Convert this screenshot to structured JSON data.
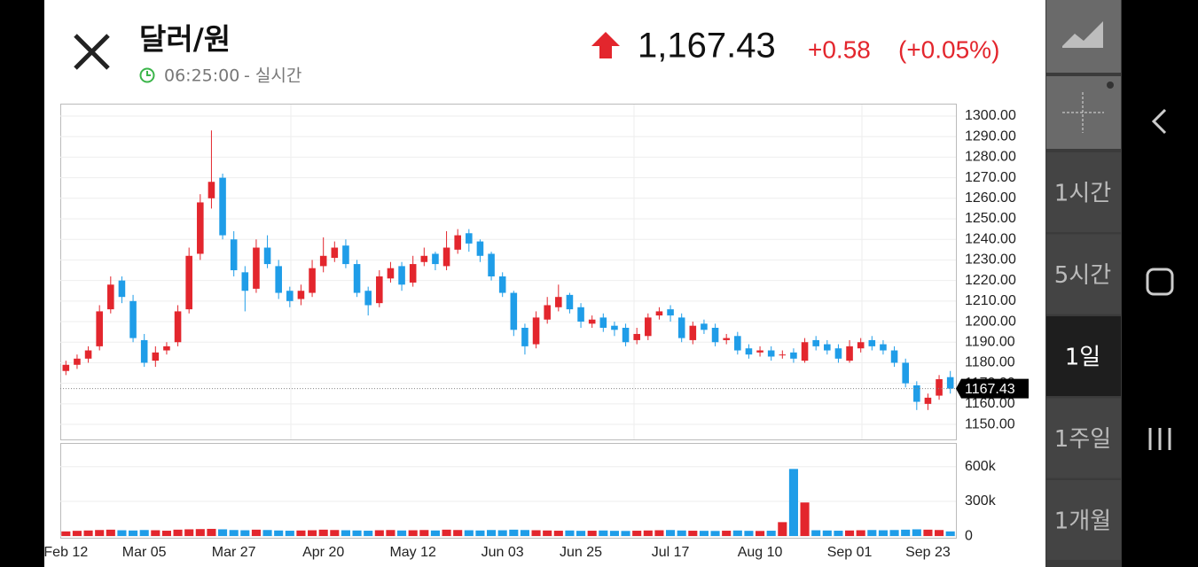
{
  "header": {
    "title": "달러/원",
    "time": "06:25:00",
    "mode": "- 실시간",
    "price": "1,167.43",
    "change": "+0.58",
    "change_pct": "(+0.05%)"
  },
  "sidebar": {
    "periods": [
      "1시간",
      "5시간",
      "1일",
      "1주일",
      "1개월"
    ],
    "selected": 2
  },
  "chart_data": [
    {
      "type": "candlestick",
      "categories": [
        "Feb 12",
        null,
        null,
        null,
        null,
        null,
        null,
        "Mar 05",
        null,
        null,
        null,
        null,
        null,
        null,
        null,
        "Mar 27",
        null,
        null,
        null,
        null,
        null,
        null,
        null,
        "Apr 20",
        null,
        null,
        null,
        null,
        null,
        null,
        null,
        "May 12",
        null,
        null,
        null,
        null,
        null,
        null,
        null,
        "Jun 03",
        null,
        null,
        null,
        null,
        null,
        null,
        "Jun 25",
        null,
        null,
        null,
        null,
        null,
        null,
        null,
        "Jul 17",
        null,
        null,
        null,
        null,
        null,
        null,
        null,
        "Aug 10",
        null,
        null,
        null,
        null,
        null,
        null,
        null,
        "Sep 01",
        null,
        null,
        null,
        null,
        null,
        null,
        "Sep 23",
        null,
        null
      ],
      "open": [
        1176,
        1179,
        1182,
        1188,
        1206,
        1220,
        1210,
        1191,
        1181,
        1186,
        1190,
        1206,
        1233,
        1260,
        1270,
        1240,
        1224,
        1216,
        1236,
        1227,
        1215,
        1211,
        1214,
        1227,
        1231,
        1237,
        1228,
        1215,
        1209,
        1221,
        1227,
        1219,
        1229,
        1233,
        1227,
        1235,
        1243,
        1239,
        1233,
        1222,
        1214,
        1197,
        1189,
        1201,
        1207,
        1213,
        1207,
        1199,
        1202,
        1198,
        1197,
        1191,
        1193,
        1203,
        1206,
        1202,
        1191,
        1199,
        1197,
        1191,
        1193,
        1187,
        1185,
        1186,
        1184,
        1185,
        1181,
        1191,
        1189,
        1187,
        1181,
        1187,
        1191,
        1189,
        1186,
        1180,
        1169,
        1160,
        1164,
        1173
      ],
      "high": [
        1181,
        1184,
        1188,
        1208,
        1222,
        1222,
        1213,
        1194,
        1188,
        1190,
        1208,
        1236,
        1262,
        1293,
        1272,
        1244,
        1227,
        1240,
        1242,
        1230,
        1217,
        1218,
        1230,
        1241,
        1239,
        1240,
        1230,
        1217,
        1225,
        1229,
        1229,
        1232,
        1236,
        1234,
        1244,
        1245,
        1245,
        1240,
        1234,
        1224,
        1215,
        1199,
        1205,
        1212,
        1218,
        1214,
        1209,
        1203,
        1204,
        1200,
        1199,
        1197,
        1204,
        1207,
        1208,
        1204,
        1200,
        1201,
        1199,
        1194,
        1195,
        1189,
        1188,
        1188,
        1186,
        1187,
        1192,
        1193,
        1191,
        1189,
        1191,
        1192,
        1193,
        1191,
        1188,
        1182,
        1171,
        1165,
        1174,
        1176
      ],
      "low": [
        1174,
        1177,
        1180,
        1186,
        1204,
        1209,
        1190,
        1178,
        1178,
        1184,
        1188,
        1204,
        1230,
        1255,
        1240,
        1222,
        1205,
        1214,
        1226,
        1211,
        1207,
        1208,
        1212,
        1224,
        1229,
        1226,
        1212,
        1203,
        1207,
        1219,
        1215,
        1217,
        1227,
        1225,
        1225,
        1233,
        1234,
        1229,
        1220,
        1212,
        1193,
        1184,
        1187,
        1199,
        1205,
        1204,
        1197,
        1197,
        1195,
        1193,
        1188,
        1189,
        1191,
        1201,
        1200,
        1190,
        1189,
        1194,
        1188,
        1189,
        1184,
        1182,
        1183,
        1181,
        1182,
        1180,
        1180,
        1186,
        1184,
        1180,
        1180,
        1185,
        1186,
        1184,
        1178,
        1168,
        1157,
        1157,
        1162,
        1165
      ],
      "close": [
        1179,
        1182,
        1186,
        1205,
        1218,
        1212,
        1192,
        1180,
        1185,
        1188,
        1205,
        1232,
        1258,
        1268,
        1242,
        1225,
        1215,
        1236,
        1228,
        1214,
        1210,
        1215,
        1226,
        1232,
        1236,
        1228,
        1214,
        1208,
        1222,
        1226,
        1218,
        1228,
        1232,
        1228,
        1236,
        1242,
        1238,
        1232,
        1222,
        1214,
        1196,
        1188,
        1202,
        1208,
        1212,
        1206,
        1200,
        1201,
        1197,
        1196,
        1190,
        1194,
        1202,
        1205,
        1203,
        1192,
        1198,
        1196,
        1190,
        1192,
        1186,
        1184,
        1186,
        1183,
        1184,
        1182,
        1190,
        1188,
        1186,
        1182,
        1188,
        1190,
        1188,
        1186,
        1180,
        1170,
        1161,
        1163,
        1172,
        1167.43
      ],
      "ylim": [
        1142.7,
        1305.6
      ],
      "yticks": [
        {
          "value": 1300,
          "label": "1300.00"
        },
        {
          "value": 1290,
          "label": "1290.00"
        },
        {
          "value": 1280,
          "label": "1280.00"
        },
        {
          "value": 1270,
          "label": "1270.00"
        },
        {
          "value": 1260,
          "label": "1260.00"
        },
        {
          "value": 1250,
          "label": "1250.00"
        },
        {
          "value": 1240,
          "label": "1240.00"
        },
        {
          "value": 1230,
          "label": "1230.00"
        },
        {
          "value": 1220,
          "label": "1220.00"
        },
        {
          "value": 1210,
          "label": "1210.00"
        },
        {
          "value": 1200,
          "label": "1200.00"
        },
        {
          "value": 1190,
          "label": "1190.00"
        },
        {
          "value": 1180,
          "label": "1180.00"
        },
        {
          "value": 1170,
          "label": "1170.00"
        },
        {
          "value": 1160,
          "label": "1160.00"
        },
        {
          "value": 1150,
          "label": "1150.00"
        }
      ],
      "up_color": "#e3262d",
      "down_color": "#1f9de8",
      "grid": true
    },
    {
      "type": "bar",
      "values": [
        40000,
        45000,
        48000,
        52000,
        55000,
        50000,
        48000,
        52000,
        50000,
        46000,
        55000,
        58000,
        60000,
        62000,
        58000,
        52000,
        50000,
        55000,
        52000,
        48000,
        46000,
        48000,
        50000,
        55000,
        52000,
        50000,
        48000,
        46000,
        50000,
        52000,
        48000,
        50000,
        52000,
        48000,
        55000,
        52000,
        50000,
        48000,
        52000,
        50000,
        55000,
        52000,
        50000,
        48000,
        46000,
        48000,
        45000,
        46000,
        48000,
        45000,
        44000,
        46000,
        48000,
        50000,
        52000,
        48000,
        46000,
        45000,
        44000,
        46000,
        48000,
        45000,
        44000,
        46000,
        120000,
        580000,
        290000,
        50000,
        48000,
        46000,
        48000,
        50000,
        52000,
        50000,
        52000,
        55000,
        58000,
        55000,
        52000,
        40000
      ],
      "ylim": [
        -15000,
        797000
      ],
      "yticks": [
        {
          "value": 600000,
          "label": "600k"
        },
        {
          "value": 300000,
          "label": "300k"
        },
        0
      ],
      "grid": true
    }
  ]
}
